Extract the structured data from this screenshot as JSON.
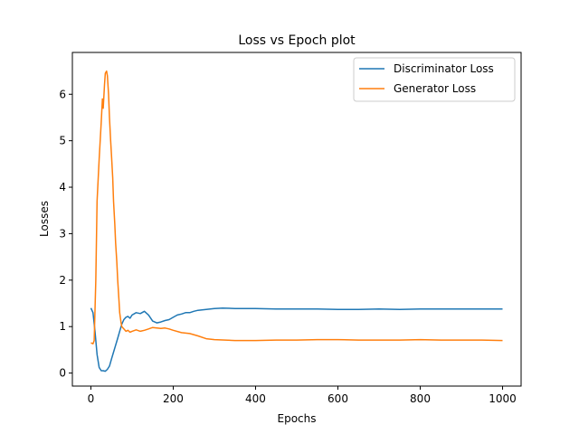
{
  "chart_data": {
    "type": "line",
    "title": "Loss vs Epoch plot",
    "xlabel": "Epochs",
    "ylabel": "Losses",
    "xlim": [
      -45,
      1045
    ],
    "ylim": [
      -0.28,
      6.9
    ],
    "xticks": [
      0,
      200,
      400,
      600,
      800,
      1000
    ],
    "yticks": [
      0,
      1,
      2,
      3,
      4,
      5,
      6
    ],
    "grid": false,
    "legend_position": "top-right",
    "series": [
      {
        "name": "Discriminator Loss",
        "color": "#1f77b4",
        "x": [
          0,
          5,
          10,
          15,
          20,
          25,
          30,
          35,
          40,
          45,
          50,
          55,
          60,
          65,
          70,
          75,
          80,
          85,
          90,
          95,
          100,
          110,
          120,
          130,
          140,
          150,
          160,
          170,
          180,
          190,
          200,
          210,
          220,
          230,
          240,
          250,
          260,
          270,
          280,
          290,
          300,
          320,
          350,
          400,
          450,
          500,
          550,
          600,
          650,
          700,
          750,
          800,
          850,
          900,
          950,
          1000
        ],
        "y": [
          1.4,
          1.3,
          0.9,
          0.4,
          0.12,
          0.05,
          0.05,
          0.04,
          0.08,
          0.15,
          0.3,
          0.45,
          0.6,
          0.75,
          0.9,
          1.05,
          1.15,
          1.2,
          1.22,
          1.18,
          1.25,
          1.3,
          1.28,
          1.33,
          1.25,
          1.12,
          1.08,
          1.1,
          1.13,
          1.15,
          1.2,
          1.25,
          1.27,
          1.3,
          1.3,
          1.33,
          1.35,
          1.36,
          1.37,
          1.38,
          1.39,
          1.4,
          1.39,
          1.39,
          1.38,
          1.38,
          1.38,
          1.37,
          1.37,
          1.38,
          1.37,
          1.38,
          1.38,
          1.38,
          1.38,
          1.38
        ]
      },
      {
        "name": "Generator Loss",
        "color": "#ff7f0e",
        "x": [
          0,
          5,
          8,
          12,
          15,
          20,
          25,
          28,
          30,
          33,
          35,
          38,
          40,
          43,
          45,
          48,
          50,
          53,
          55,
          58,
          60,
          63,
          65,
          68,
          70,
          73,
          75,
          80,
          85,
          90,
          95,
          100,
          110,
          120,
          130,
          140,
          150,
          160,
          170,
          180,
          190,
          200,
          220,
          240,
          260,
          280,
          300,
          350,
          400,
          450,
          500,
          550,
          600,
          650,
          700,
          750,
          800,
          850,
          900,
          950,
          1000
        ],
        "y": [
          0.65,
          0.63,
          0.7,
          2.0,
          3.7,
          4.6,
          5.4,
          5.9,
          5.7,
          6.2,
          6.45,
          6.5,
          6.4,
          6.0,
          5.5,
          5.0,
          4.7,
          4.2,
          3.7,
          3.2,
          2.8,
          2.4,
          2.0,
          1.6,
          1.3,
          1.1,
          1.0,
          0.95,
          0.9,
          0.92,
          0.88,
          0.9,
          0.93,
          0.9,
          0.92,
          0.95,
          0.98,
          0.97,
          0.96,
          0.97,
          0.95,
          0.92,
          0.87,
          0.85,
          0.8,
          0.74,
          0.72,
          0.7,
          0.7,
          0.71,
          0.71,
          0.72,
          0.72,
          0.71,
          0.71,
          0.71,
          0.72,
          0.71,
          0.71,
          0.71,
          0.7
        ]
      }
    ]
  }
}
